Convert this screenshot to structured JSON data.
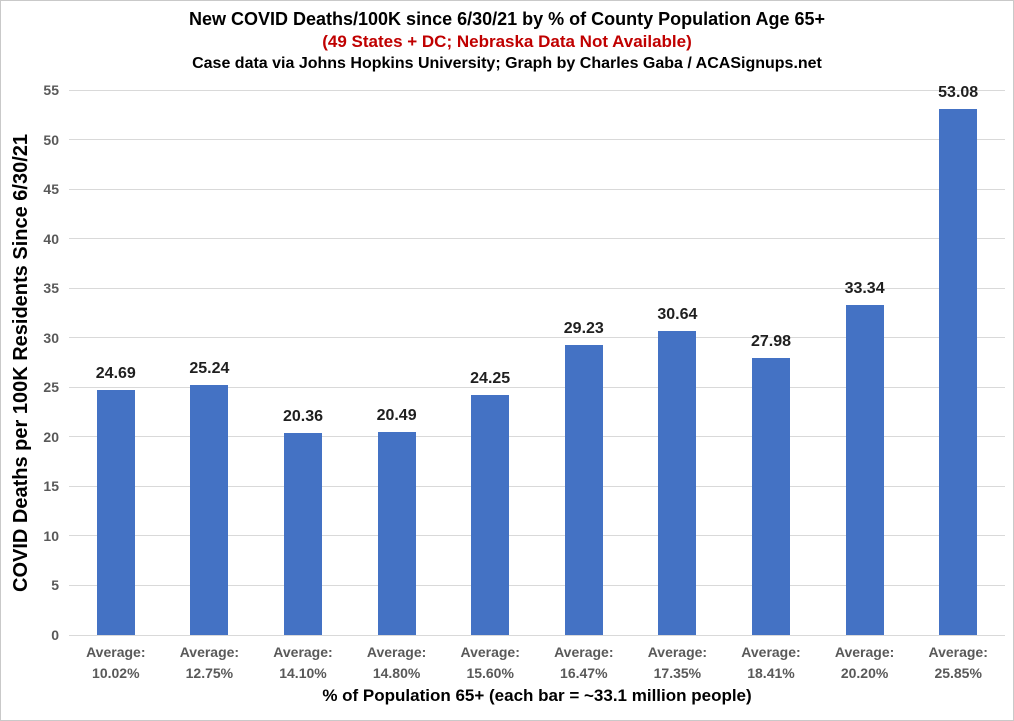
{
  "chart_data": {
    "type": "bar",
    "title": "New COVID Deaths/100K since 6/30/21 by % of County Population Age 65+",
    "subtitle": "(49 States + DC; Nebraska Data Not Available)",
    "credit": "Case data via Johns Hopkins University; Graph by Charles Gaba / ACASignups.net",
    "xlabel": "% of Population 65+ (each bar = ~33.1 million people)",
    "ylabel": "COVID Deaths per 100K Residents Since 6/30/21",
    "category_prefix": "Average:",
    "categories": [
      "10.02%",
      "12.75%",
      "14.10%",
      "14.80%",
      "15.60%",
      "16.47%",
      "17.35%",
      "18.41%",
      "20.20%",
      "25.85%"
    ],
    "values": [
      24.69,
      25.24,
      20.36,
      20.49,
      24.25,
      29.23,
      30.64,
      27.98,
      33.34,
      53.08
    ],
    "value_labels": [
      "24.69",
      "25.24",
      "20.36",
      "20.49",
      "24.25",
      "29.23",
      "30.64",
      "27.98",
      "33.34",
      "53.08"
    ],
    "ylim": [
      0,
      55
    ],
    "ytick_step": 5,
    "yticks": [
      "0",
      "5",
      "10",
      "15",
      "20",
      "25",
      "30",
      "35",
      "40",
      "45",
      "50",
      "55"
    ],
    "grid": true,
    "legend": "none",
    "colors": {
      "bar": "#4472C4",
      "gridline": "#D9D9D9",
      "title_text": "#000000",
      "subtitle_text": "#C00000",
      "tick_text": "#595959",
      "value_label_text": "#1F1F1F",
      "category_text": "#595959",
      "background": "#FFFFFF"
    }
  }
}
